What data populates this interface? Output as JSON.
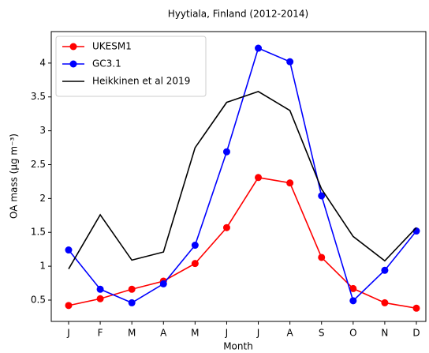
{
  "chart_data": {
    "type": "line",
    "title": "Hyytiala, Finland (2012-2014)",
    "x_label": "Month",
    "y_label": "OA mass (μg m⁻³)",
    "categories": [
      "J",
      "F",
      "M",
      "A",
      "M",
      "J",
      "J",
      "A",
      "S",
      "O",
      "N",
      "D"
    ],
    "ylim": [
      0.185,
      4.465
    ],
    "yticks": [
      0.5,
      1.0,
      1.5,
      2.0,
      2.5,
      3.0,
      3.5,
      4.0
    ],
    "legend": "upper left",
    "series": [
      {
        "name": "UKESM1",
        "color": "#ff0000",
        "marker": true,
        "values": [
          0.42,
          0.52,
          0.66,
          0.78,
          1.04,
          1.57,
          2.31,
          2.23,
          1.13,
          0.67,
          0.46,
          0.38
        ]
      },
      {
        "name": "GC3.1",
        "color": "#0000ff",
        "marker": true,
        "values": [
          1.24,
          0.66,
          0.46,
          0.74,
          1.31,
          2.69,
          4.22,
          4.02,
          2.04,
          0.49,
          0.94,
          1.52
        ]
      },
      {
        "name": "Heikkinen et al 2019",
        "color": "#000000",
        "marker": false,
        "values": [
          0.96,
          1.76,
          1.09,
          1.21,
          2.75,
          3.42,
          3.58,
          3.3,
          2.14,
          1.44,
          1.08,
          1.57
        ]
      }
    ]
  }
}
